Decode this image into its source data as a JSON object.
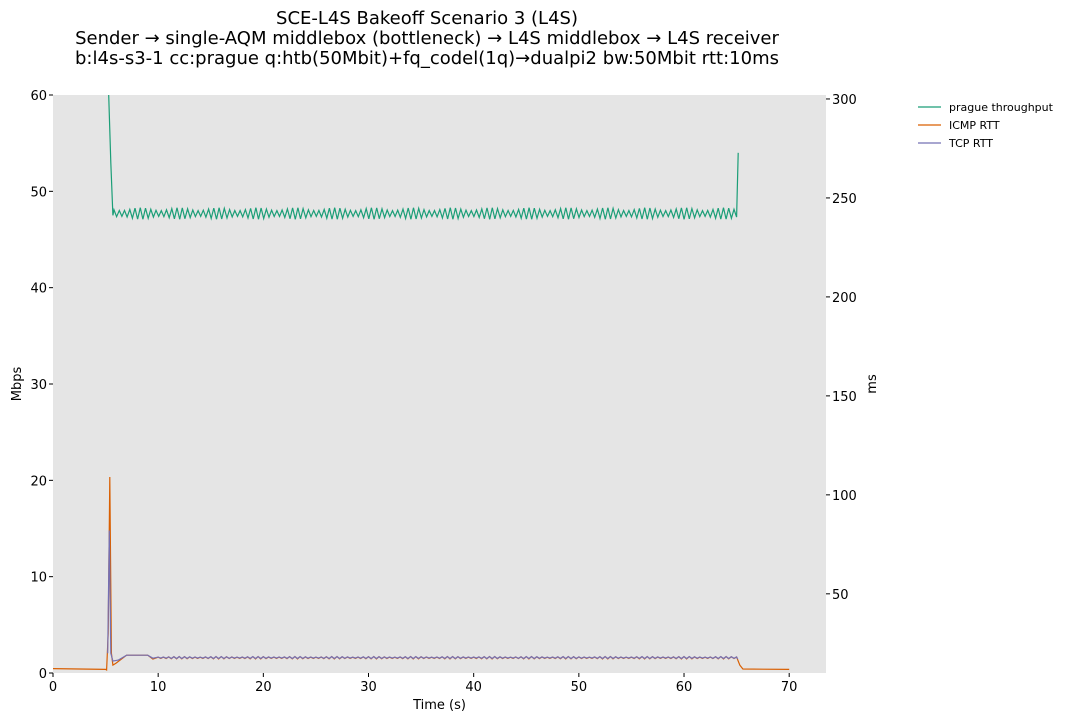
{
  "chart_data": {
    "type": "line",
    "title_lines": [
      "SCE-L4S Bakeoff Scenario 3 (L4S)",
      "Sender → single-AQM middlebox (bottleneck) → L4S middlebox → L4S receiver",
      "b:l4s-s3-1 cc:prague q:htb(50Mbit)+fq_codel(1q)→dualpi2 bw:50Mbit rtt:10ms"
    ],
    "xlabel": "Time (s)",
    "ylabel_left": "Mbps",
    "ylabel_right": "ms",
    "xlim": [
      0,
      73.5
    ],
    "ylim_left": [
      0,
      60
    ],
    "ylim_right": [
      10,
      302
    ],
    "x_ticks": [
      "0",
      "10",
      "20",
      "30",
      "40",
      "50",
      "60",
      "70"
    ],
    "y_ticks_left": [
      "0",
      "10",
      "20",
      "30",
      "40",
      "50",
      "60"
    ],
    "y_ticks_right": [
      "50",
      "100",
      "150",
      "200",
      "250",
      "300"
    ],
    "background": "#e5e5e5",
    "grid": false,
    "legend_position": "outside-top-right",
    "series": [
      {
        "name": "prague throughput",
        "axis": "left",
        "color": "#1b9e77",
        "points": [
          [
            5.3,
            62
          ],
          [
            5.5,
            53
          ],
          [
            5.7,
            47.5
          ],
          [
            6.0,
            48.2
          ],
          [
            65.0,
            47.5
          ],
          [
            65.15,
            54
          ]
        ],
        "steady_mean": 47.7,
        "steady_range": [
          5.8,
          65.0
        ],
        "oscillation_amplitude": 0.6
      },
      {
        "name": "ICMP RTT",
        "axis": "right",
        "color": "#d95f02",
        "points": [
          [
            0,
            12.2
          ],
          [
            5.0,
            11.8
          ],
          [
            5.1,
            11.5
          ],
          [
            5.25,
            30
          ],
          [
            5.4,
            109
          ],
          [
            5.55,
            20
          ],
          [
            5.7,
            14
          ],
          [
            6.0,
            15
          ],
          [
            7.0,
            19
          ],
          [
            9.0,
            19
          ],
          [
            9.5,
            17
          ],
          [
            10.0,
            18
          ],
          [
            65.0,
            18
          ],
          [
            65.3,
            14
          ],
          [
            65.6,
            12
          ],
          [
            70.0,
            11.8
          ]
        ],
        "steady_mean": 17.7,
        "steady_range": [
          10.0,
          65.0
        ],
        "oscillation_amplitude": 0.6
      },
      {
        "name": "TCP RTT",
        "axis": "right",
        "color": "#7570b3",
        "points": [
          [
            5.2,
            20
          ],
          [
            5.35,
            82
          ],
          [
            5.5,
            20
          ],
          [
            5.7,
            16
          ],
          [
            6.2,
            16.5
          ],
          [
            7.0,
            19
          ],
          [
            9.0,
            19
          ],
          [
            9.5,
            17.5
          ],
          [
            10.0,
            18
          ],
          [
            65.0,
            18
          ],
          [
            65.1,
            17
          ]
        ],
        "steady_mean": 17.8,
        "steady_range": [
          10.0,
          65.0
        ],
        "oscillation_amplitude": 0.5
      }
    ]
  }
}
